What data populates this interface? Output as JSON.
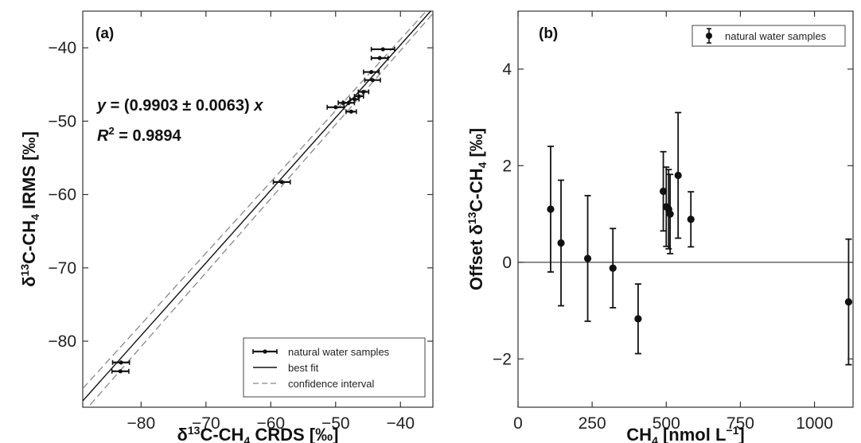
{
  "chart_data": [
    {
      "type": "scatter",
      "panel_label": "(a)",
      "xlabel_prefix": "δ",
      "xlabel_sup": "13",
      "xlabel_suffix": "C-CH",
      "xlabel_sub": "4",
      "xlabel_end": " CRDS [‰]",
      "ylabel_prefix": "δ",
      "ylabel_sup": "13",
      "ylabel_suffix": "C-CH",
      "ylabel_sub": "4",
      "ylabel_end": " IRMS [‰]",
      "xlim": [
        -89,
        -35
      ],
      "ylim": [
        -89,
        -35
      ],
      "xticks": [
        -80,
        -70,
        -60,
        -50,
        -40
      ],
      "xtick_labels": [
        "−80",
        "−70",
        "−60",
        "−50",
        "−40"
      ],
      "yticks": [
        -80,
        -70,
        -60,
        -50,
        -40
      ],
      "ytick_labels": [
        "−80",
        "−70",
        "−60",
        "−50",
        "−40"
      ],
      "grid": false,
      "legend_position": "bottom-right",
      "equation_parts": [
        "y",
        " = (0.9903 ± 0.0063) ",
        "x"
      ],
      "r2_parts": [
        "R",
        "2",
        " = 0.9894"
      ],
      "series": [
        {
          "name": "natural water samples",
          "marker": "errorbar-point",
          "points": [
            {
              "x": -42.7,
              "y": -40.2,
              "xerr": 1.8
            },
            {
              "x": -43.2,
              "y": -41.4,
              "xerr": 1.3
            },
            {
              "x": -44.5,
              "y": -43.3,
              "xerr": 1.2
            },
            {
              "x": -44.3,
              "y": -44.4,
              "xerr": 1.2
            },
            {
              "x": -45.7,
              "y": -46.0,
              "xerr": 0.8
            },
            {
              "x": -46.4,
              "y": -46.6,
              "xerr": 0.7
            },
            {
              "x": -47.1,
              "y": -47.0,
              "xerr": 0.7
            },
            {
              "x": -48.0,
              "y": -47.5,
              "xerr": 0.9
            },
            {
              "x": -48.8,
              "y": -47.5,
              "xerr": 0.8
            },
            {
              "x": -47.6,
              "y": -48.7,
              "xerr": 0.8
            },
            {
              "x": -50.0,
              "y": -48.1,
              "xerr": 1.3
            },
            {
              "x": -58.3,
              "y": -58.3,
              "xerr": 1.3
            },
            {
              "x": -83.1,
              "y": -82.9,
              "xerr": 1.3
            },
            {
              "x": -83.2,
              "y": -84.1,
              "xerr": 1.3
            }
          ]
        },
        {
          "name": "best fit",
          "style": "solid",
          "slope": 0.9903
        },
        {
          "name": "confidence interval",
          "style": "dashed",
          "slopes": [
            0.9713,
            1.0093
          ]
        }
      ]
    },
    {
      "type": "scatter",
      "panel_label": "(b)",
      "xlabel_prefix": "CH",
      "xlabel_sub": "4",
      "xlabel_end": " [nmol L",
      "xlabel_sup": "−1",
      "xlabel_close": "]",
      "ylabel_prefix": "Offset δ",
      "ylabel_sup": "13",
      "ylabel_suffix": "C-CH",
      "ylabel_sub": "4",
      "ylabel_end": " [‰]",
      "xlim": [
        0,
        1130
      ],
      "ylim": [
        -3,
        5.2
      ],
      "xticks": [
        0,
        250,
        500,
        750,
        1000
      ],
      "xtick_labels": [
        "0",
        "250",
        "500",
        "750",
        "1000"
      ],
      "yticks": [
        -2,
        0,
        2,
        4
      ],
      "ytick_labels": [
        "−2",
        "0",
        "2",
        "4"
      ],
      "grid": false,
      "reference_line_y": 0,
      "legend_position": "top-right",
      "series": [
        {
          "name": "natural water samples",
          "marker": "errorbar-point",
          "points": [
            {
              "x": 110,
              "y": 1.1,
              "yerr": 1.3
            },
            {
              "x": 145,
              "y": 0.4,
              "yerr": 1.3
            },
            {
              "x": 235,
              "y": 0.08,
              "yerr": 1.3
            },
            {
              "x": 320,
              "y": -0.12,
              "yerr": 0.82
            },
            {
              "x": 405,
              "y": -1.17,
              "yerr": 0.72
            },
            {
              "x": 490,
              "y": 1.47,
              "yerr": 0.82
            },
            {
              "x": 500,
              "y": 1.15,
              "yerr": 0.82
            },
            {
              "x": 508,
              "y": 1.1,
              "yerr": 0.82
            },
            {
              "x": 513,
              "y": 1.0,
              "yerr": 0.82
            },
            {
              "x": 540,
              "y": 1.8,
              "yerr": 1.3
            },
            {
              "x": 583,
              "y": 0.89,
              "yerr": 0.57
            },
            {
              "x": 1115,
              "y": -0.82,
              "yerr": 1.3
            }
          ]
        }
      ]
    }
  ]
}
